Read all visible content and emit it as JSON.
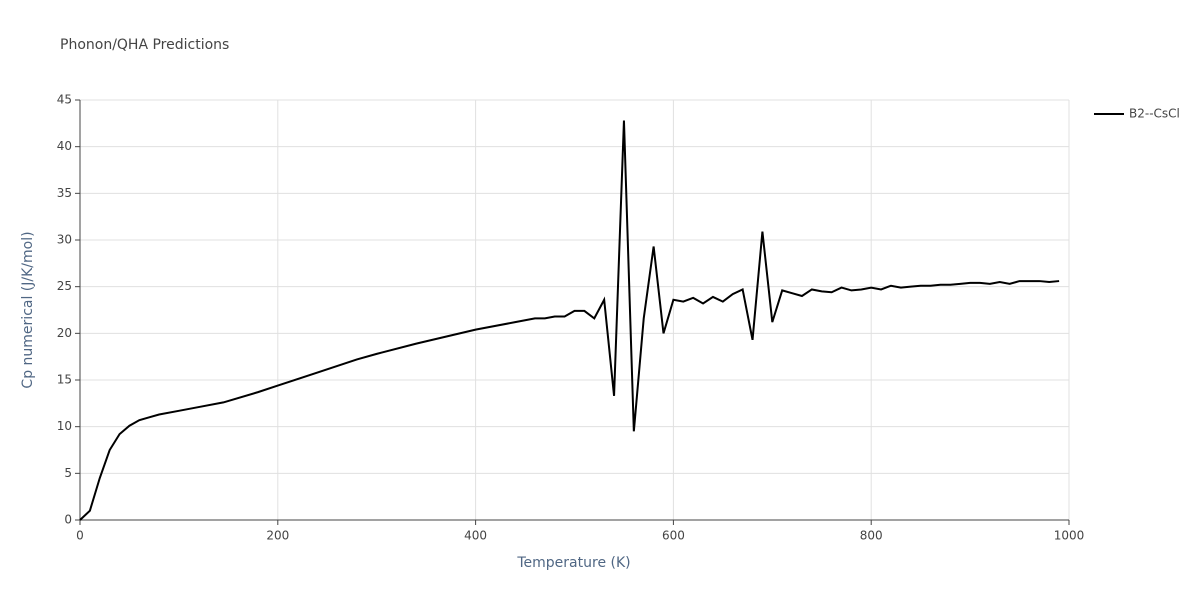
{
  "chart_data": {
    "type": "line",
    "title": "Phonon/QHA Predictions",
    "x_label": "Temperature (K)",
    "y_label": "Cp numerical (J/K/mol)",
    "xlim": [
      0,
      1000
    ],
    "xticks": [
      0,
      200,
      400,
      600,
      800,
      1000
    ],
    "ylim": [
      0,
      45
    ],
    "yticks": [
      0,
      5,
      10,
      15,
      20,
      25,
      30,
      35,
      40,
      45
    ],
    "grid": true,
    "legend": "right",
    "series": [
      {
        "name": "B2--CsCl",
        "color": "#000000",
        "x": [
          0,
          10,
          20,
          30,
          40,
          50,
          60,
          70,
          80,
          100,
          120,
          145,
          180,
          200,
          240,
          280,
          300,
          340,
          400,
          440,
          460,
          470,
          480,
          490,
          500,
          510,
          520,
          530,
          540,
          550,
          560,
          570,
          580,
          590,
          600,
          610,
          620,
          630,
          640,
          650,
          660,
          670,
          680,
          690,
          700,
          710,
          720,
          730,
          740,
          750,
          760,
          770,
          780,
          790,
          800,
          810,
          820,
          830,
          840,
          850,
          860,
          870,
          880,
          890,
          900,
          910,
          920,
          930,
          940,
          950,
          960,
          970,
          980,
          990
        ],
        "values": [
          0,
          1.0,
          4.5,
          7.5,
          9.2,
          10.1,
          10.7,
          11.0,
          11.3,
          11.7,
          12.1,
          12.6,
          13.7,
          14.4,
          15.8,
          17.2,
          17.8,
          18.9,
          20.4,
          21.2,
          21.6,
          21.6,
          21.8,
          21.8,
          22.4,
          22.4,
          21.6,
          23.6,
          13.3,
          42.8,
          9.5,
          21.6,
          29.3,
          20.0,
          23.6,
          23.4,
          23.8,
          23.2,
          23.9,
          23.4,
          24.2,
          24.7,
          19.3,
          30.9,
          21.2,
          24.6,
          24.3,
          24.0,
          24.7,
          24.5,
          24.4,
          24.9,
          24.6,
          24.7,
          24.9,
          24.7,
          25.1,
          24.9,
          25.0,
          25.1,
          25.1,
          25.2,
          25.2,
          25.3,
          25.4,
          25.4,
          25.3,
          25.5,
          25.3,
          25.6,
          25.6,
          25.6,
          25.5,
          25.6
        ]
      }
    ]
  }
}
